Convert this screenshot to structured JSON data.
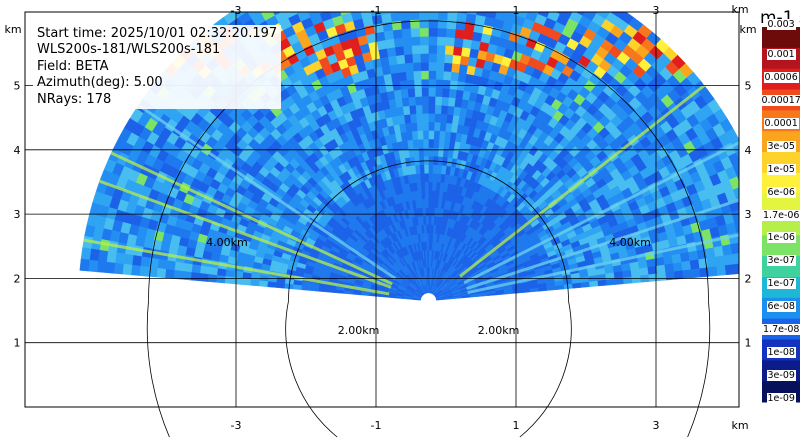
{
  "chart_data": {
    "type": "heatmap",
    "subtype": "radar-ppi-sector",
    "x_axis": {
      "unit_label": "km",
      "ticks": [
        "-3",
        "-1",
        "1",
        "3"
      ],
      "tick_values": [
        -3,
        -1,
        1,
        3
      ],
      "range": [
        -5.3,
        4.0
      ]
    },
    "y_axis": {
      "unit_label": "km",
      "ticks": [
        "1",
        "2",
        "3",
        "4",
        "5"
      ],
      "tick_values": [
        1,
        2,
        3,
        4,
        5
      ],
      "range": [
        0.0,
        5.8
      ]
    },
    "grid": true,
    "range_rings": [
      {
        "label": "2.00km",
        "radius_km": 2.0
      },
      {
        "label": "4.00km",
        "radius_km": 4.0
      }
    ],
    "info": {
      "start_time": "Start time: 2025/10/01 02:32:20.197",
      "instrument": "WLS200s-181/WLS200s-181",
      "field": "Field: BETA",
      "azimuth": "Azimuth(deg): 5.00",
      "nrays": "NRays: 178"
    },
    "colorbar": {
      "unit_label": "m-1 sr-1",
      "top_label": "0.003",
      "labels": [
        "0.001",
        "0.0006",
        "0.00017",
        "0.0001",
        "3e-05",
        "1e-05",
        "6e-06",
        "1.7e-06",
        "1e-06",
        "3e-07",
        "1e-07",
        "6e-08",
        "1.7e-08",
        "1e-08",
        "3e-09",
        "1e-09"
      ],
      "colors": [
        "#6d0a0a",
        "#b3141e",
        "#e01e1e",
        "#f04a1e",
        "#f7771c",
        "#fba51f",
        "#fdd22a",
        "#fff03c",
        "#e4f53f",
        "#b7ef4a",
        "#7de367",
        "#3fd19e",
        "#1fb7d8",
        "#1a8ff0",
        "#1b62e8",
        "#1433bf",
        "#0b1c8a",
        "#07105a"
      ]
    },
    "sector": {
      "center": [
        -0.25,
        1.65
      ],
      "start_angle_deg": 5,
      "end_angle_deg": 175,
      "max_range_km": 5.0,
      "streaks_deg": [
        18,
        155,
        27,
        160,
        146,
        170,
        12,
        38
      ]
    }
  },
  "colors": {
    "background": "#ffffff",
    "grid": "#000000",
    "ring": "#000000"
  }
}
